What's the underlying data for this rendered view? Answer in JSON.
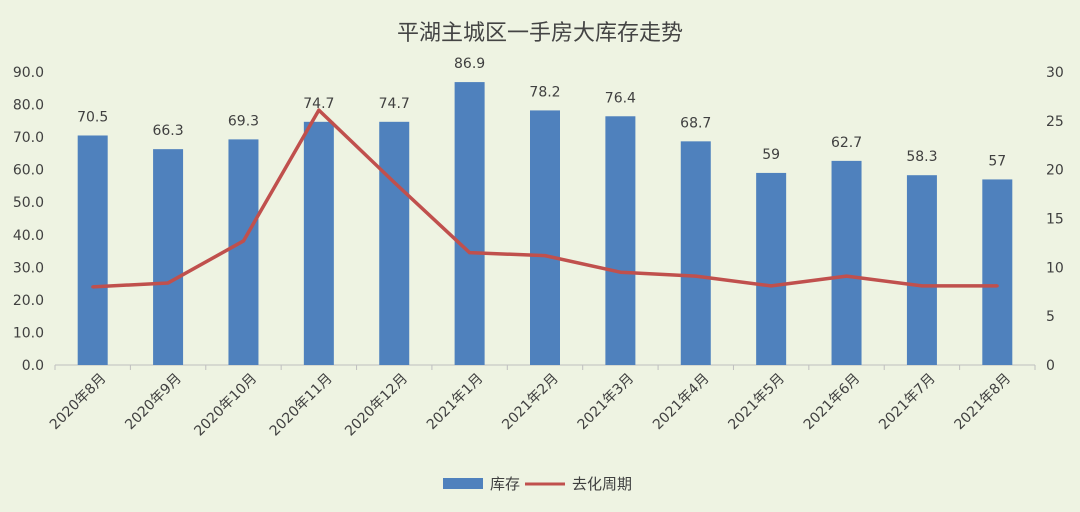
{
  "chart_data": {
    "type": "bar",
    "title": "平湖主城区一手房大库存走势",
    "categories": [
      "2020年8月",
      "2020年9月",
      "2020年10月",
      "2020年11月",
      "2020年12月",
      "2021年1月",
      "2021年2月",
      "2021年3月",
      "2021年4月",
      "2021年5月",
      "2021年6月",
      "2021年7月",
      "2021年8月"
    ],
    "series": [
      {
        "name": "库存",
        "kind": "bar",
        "axis": "left",
        "color": "#4f81bd",
        "values": [
          70.5,
          66.3,
          69.3,
          74.7,
          74.7,
          86.9,
          78.2,
          76.4,
          68.7,
          59,
          62.7,
          58.3,
          57
        ],
        "labels": [
          "70.5",
          "66.3",
          "69.3",
          "74.7",
          "74.7",
          "86.9",
          "78.2",
          "76.4",
          "68.7",
          "59",
          "62.7",
          "58.3",
          "57"
        ]
      },
      {
        "name": "去化周期",
        "kind": "line",
        "axis": "right",
        "color": "#c0504d",
        "values": [
          8,
          8.4,
          12.7,
          26.1,
          18.7,
          11.5,
          11.2,
          9.5,
          9.1,
          8.1,
          9.1,
          8.1,
          8.1
        ]
      }
    ],
    "y_left": {
      "min": 0,
      "max": 90,
      "step": 10,
      "ticks": [
        "0.0",
        "10.0",
        "20.0",
        "30.0",
        "40.0",
        "50.0",
        "60.0",
        "70.0",
        "80.0",
        "90.0"
      ]
    },
    "y_right": {
      "min": 0,
      "max": 30,
      "step": 5,
      "ticks": [
        "0",
        "5",
        "10",
        "15",
        "20",
        "25",
        "30"
      ]
    },
    "grid": false,
    "legend": "bottom"
  }
}
